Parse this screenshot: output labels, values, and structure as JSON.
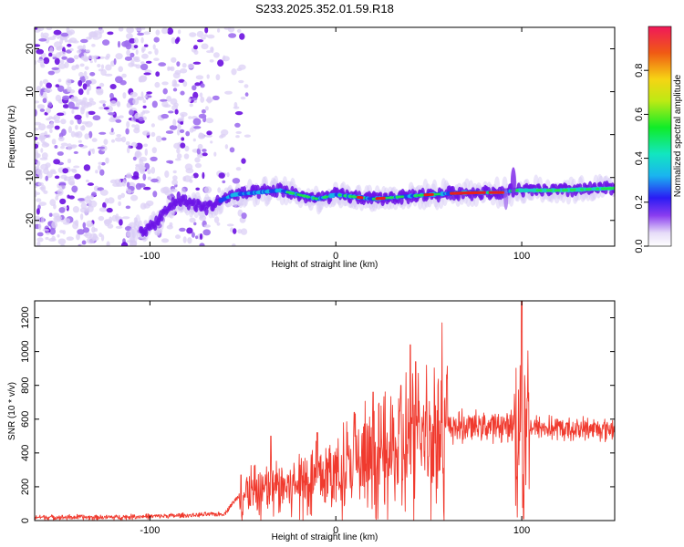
{
  "figure_title": "S233.2025.352.01.59.R18",
  "colors": {
    "snr_line": "#f03a2e",
    "spectrogram_low": "#dcd0f6",
    "spectrogram_mid": "#7a16e6"
  },
  "chart_data": [
    {
      "type": "heatmap",
      "title": "S233.2025.352.01.59.R18",
      "xlabel": "Height of straight line (km)",
      "ylabel": "Frequency (Hz)",
      "xlim": [
        -162,
        150
      ],
      "ylim": [
        -26,
        25
      ],
      "xticks": [
        -100,
        0,
        100
      ],
      "yticks": [
        20,
        10,
        0,
        -10,
        -20
      ],
      "colorbar": {
        "label": "Normalized spectral amplitude",
        "range": [
          0,
          1
        ],
        "ticks": [
          0.0,
          0.2,
          0.4,
          0.6,
          0.8
        ],
        "colormap": "rainbow"
      },
      "ridge_track": [
        {
          "x": -100,
          "y": -22
        },
        {
          "x": -85,
          "y": -15
        },
        {
          "x": -70,
          "y": -17
        },
        {
          "x": -55,
          "y": -14
        },
        {
          "x": -30,
          "y": -13
        },
        {
          "x": -10,
          "y": -15
        },
        {
          "x": 0,
          "y": -14
        },
        {
          "x": 20,
          "y": -15
        },
        {
          "x": 50,
          "y": -14
        },
        {
          "x": 70,
          "y": -13.5
        },
        {
          "x": 90,
          "y": -13.5
        },
        {
          "x": 96,
          "y": -13
        },
        {
          "x": 120,
          "y": -13
        },
        {
          "x": 150,
          "y": -12.5
        }
      ]
    },
    {
      "type": "line",
      "xlabel": "Height of straight line (km)",
      "ylabel": "SNR (10 * v/v)",
      "xlim": [
        -162,
        150
      ],
      "ylim": [
        0,
        1300
      ],
      "xticks": [
        -100,
        0,
        100
      ],
      "yticks": [
        0,
        200,
        400,
        600,
        800,
        1000,
        1200
      ],
      "series": [
        {
          "name": "SNR",
          "trend": [
            {
              "x": -162,
              "y": 20
            },
            {
              "x": -120,
              "y": 20
            },
            {
              "x": -100,
              "y": 25
            },
            {
              "x": -80,
              "y": 30
            },
            {
              "x": -60,
              "y": 40
            },
            {
              "x": -52,
              "y": 150
            },
            {
              "x": -40,
              "y": 170
            },
            {
              "x": -20,
              "y": 220
            },
            {
              "x": 0,
              "y": 280
            },
            {
              "x": 20,
              "y": 350
            },
            {
              "x": 40,
              "y": 450
            },
            {
              "x": 60,
              "y": 550
            },
            {
              "x": 80,
              "y": 560
            },
            {
              "x": 95,
              "y": 560
            },
            {
              "x": 100,
              "y": 560
            },
            {
              "x": 120,
              "y": 540
            },
            {
              "x": 150,
              "y": 545
            }
          ],
          "peaks": [
            {
              "x": -51,
              "y": 270
            },
            {
              "x": -35,
              "y": 500
            },
            {
              "x": -10,
              "y": 520
            },
            {
              "x": 10,
              "y": 640
            },
            {
              "x": 20,
              "y": 760
            },
            {
              "x": 35,
              "y": 800
            },
            {
              "x": 40,
              "y": 1040
            },
            {
              "x": 43,
              "y": 940
            },
            {
              "x": 100,
              "y": 1300
            },
            {
              "x": 101,
              "y": 10
            }
          ]
        }
      ]
    }
  ]
}
